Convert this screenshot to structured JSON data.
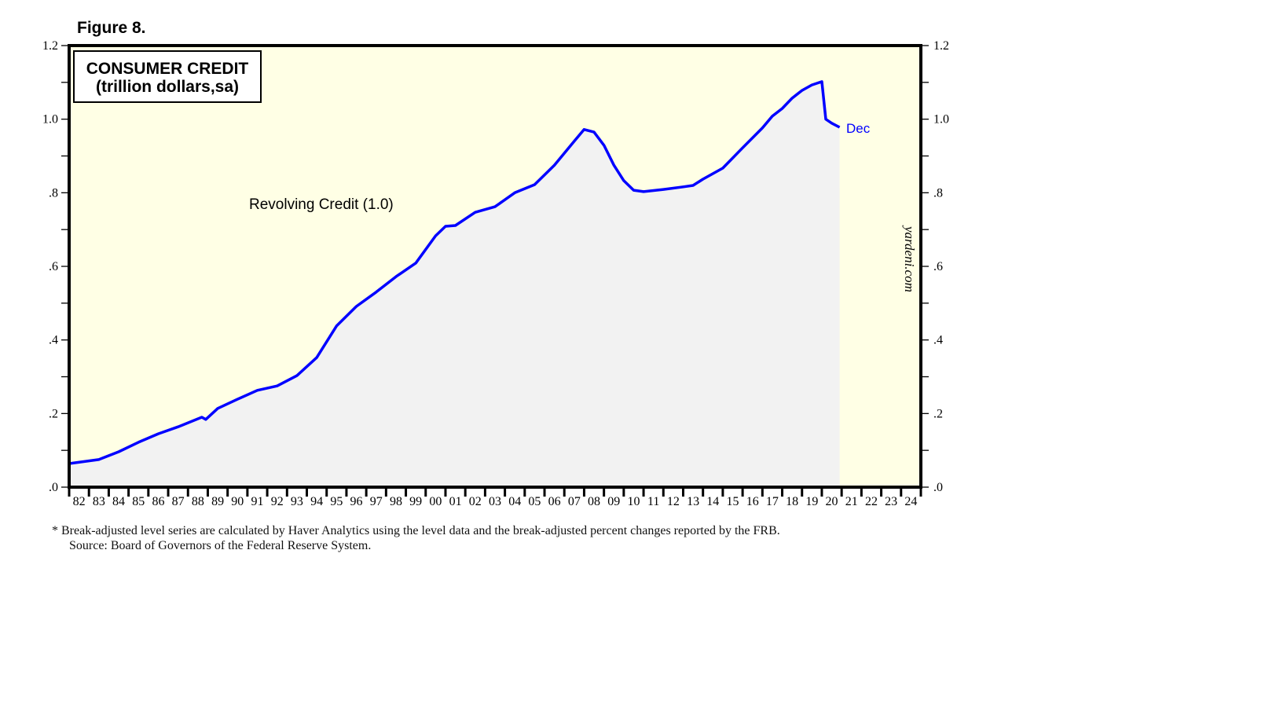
{
  "figure_label": "Figure 8.",
  "chart_data": {
    "type": "area",
    "title": "CONSUMER CREDIT",
    "subtitle": "(trillion dollars,sa)",
    "series": [
      {
        "name": "Revolving Credit (1.0)",
        "color": "#0000ff",
        "x": [
          1982.0,
          1983.5,
          1984.5,
          1985.5,
          1986.5,
          1987.5,
          1988.7,
          1988.9,
          1989.5,
          1990.5,
          1991.5,
          1992.5,
          1993.5,
          1994.5,
          1995.5,
          1996.5,
          1997.5,
          1998.5,
          1999.5,
          2000.5,
          2001.0,
          2001.5,
          2002.5,
          2003.5,
          2004.5,
          2005.5,
          2006.5,
          2007.5,
          2008.0,
          2008.5,
          2009.0,
          2009.5,
          2010.0,
          2010.5,
          2011.0,
          2012.0,
          2013.0,
          2013.5,
          2014.0,
          2015.0,
          2016.0,
          2017.0,
          2017.5,
          2018.0,
          2018.5,
          2019.0,
          2019.5,
          2020.0,
          2020.2,
          2020.5,
          2020.9
        ],
        "values": [
          0.064,
          0.075,
          0.096,
          0.122,
          0.145,
          0.164,
          0.19,
          0.184,
          0.214,
          0.239,
          0.263,
          0.275,
          0.303,
          0.352,
          0.438,
          0.491,
          0.53,
          0.572,
          0.609,
          0.683,
          0.709,
          0.711,
          0.747,
          0.762,
          0.8,
          0.822,
          0.875,
          0.94,
          0.972,
          0.965,
          0.929,
          0.875,
          0.833,
          0.807,
          0.803,
          0.809,
          0.816,
          0.82,
          0.837,
          0.867,
          0.922,
          0.976,
          1.008,
          1.029,
          1.057,
          1.078,
          1.093,
          1.102,
          1.0,
          0.989,
          0.978
        ]
      }
    ],
    "series_label": "Revolving Credit (1.0)",
    "end_label": "Dec",
    "ylim": [
      0,
      1.2
    ],
    "xlim": [
      1982,
      2025
    ],
    "y_ticks": [
      "1.2",
      "1.0",
      ".8",
      ".6",
      ".4",
      ".2",
      ".0"
    ],
    "y_tick_values": [
      1.2,
      1.0,
      0.8,
      0.6,
      0.4,
      0.2,
      0.0
    ],
    "x_ticks": [
      "82",
      "83",
      "84",
      "85",
      "86",
      "87",
      "88",
      "89",
      "90",
      "91",
      "92",
      "93",
      "94",
      "95",
      "96",
      "97",
      "98",
      "99",
      "00",
      "01",
      "02",
      "03",
      "04",
      "05",
      "06",
      "07",
      "08",
      "09",
      "10",
      "11",
      "12",
      "13",
      "14",
      "15",
      "16",
      "17",
      "18",
      "19",
      "20",
      "21",
      "22",
      "23",
      "24"
    ],
    "watermark": "yardeni.com",
    "colors": {
      "background": "#ffffe5",
      "fill": "#f2f2f2",
      "line": "#0000ff"
    }
  },
  "footnotes": {
    "note": "*   Break-adjusted level series are calculated by Haver Analytics using the level data and the break-adjusted percent changes reported by the FRB.",
    "source": "Source: Board of Governors of the Federal Reserve System."
  }
}
